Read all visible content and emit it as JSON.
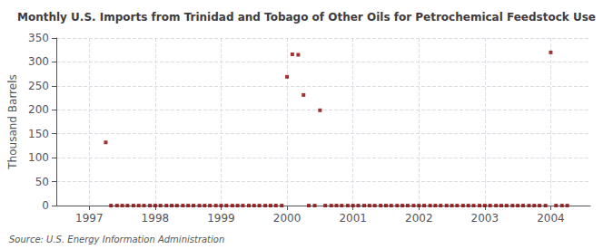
{
  "chart_data": {
    "type": "scatter",
    "title": "Monthly U.S. Imports from Trinidad and Tobago of Other Oils for Petrochemical Feedstock Use",
    "ylabel": "Thousand Barrels",
    "annotations": [
      "Source: U.S. Energy Information Administration"
    ],
    "color": "#8b0000",
    "marker": "square",
    "grid": true,
    "xlim": [
      1996.5,
      2004.6
    ],
    "xticks": [
      1997,
      1998,
      1999,
      2000,
      2001,
      2002,
      2003,
      2004
    ],
    "ylim": [
      0,
      350
    ],
    "yticks": [
      0,
      50,
      100,
      150,
      200,
      250,
      300,
      350
    ],
    "x": [
      1997.25,
      1997.33,
      1997.42,
      1997.5,
      1997.58,
      1997.67,
      1997.75,
      1997.83,
      1997.92,
      1998.0,
      1998.08,
      1998.17,
      1998.25,
      1998.33,
      1998.42,
      1998.5,
      1998.58,
      1998.67,
      1998.75,
      1998.83,
      1998.92,
      1999.0,
      1999.08,
      1999.17,
      1999.25,
      1999.33,
      1999.42,
      1999.5,
      1999.58,
      1999.67,
      1999.75,
      1999.83,
      1999.92,
      2000.0,
      2000.08,
      2000.17,
      2000.25,
      2000.33,
      2000.42,
      2000.5,
      2000.58,
      2000.67,
      2000.75,
      2000.83,
      2000.92,
      2001.0,
      2001.08,
      2001.17,
      2001.25,
      2001.33,
      2001.42,
      2001.5,
      2001.58,
      2001.67,
      2001.75,
      2001.83,
      2001.92,
      2002.0,
      2002.08,
      2002.17,
      2002.25,
      2002.33,
      2002.42,
      2002.5,
      2002.58,
      2002.67,
      2002.75,
      2002.83,
      2002.92,
      2003.0,
      2003.08,
      2003.17,
      2003.25,
      2003.33,
      2003.42,
      2003.5,
      2003.58,
      2003.67,
      2003.75,
      2003.83,
      2003.92,
      2004.0,
      2004.08,
      2004.17,
      2004.25
    ],
    "values": [
      132,
      0,
      0,
      0,
      0,
      0,
      0,
      0,
      0,
      0,
      0,
      0,
      0,
      0,
      0,
      0,
      0,
      0,
      0,
      0,
      0,
      0,
      0,
      0,
      0,
      0,
      0,
      0,
      0,
      0,
      0,
      0,
      0,
      269,
      316,
      315,
      231,
      0,
      0,
      199,
      0,
      0,
      0,
      0,
      0,
      0,
      0,
      0,
      0,
      0,
      0,
      0,
      0,
      0,
      0,
      0,
      0,
      0,
      0,
      0,
      0,
      0,
      0,
      0,
      0,
      0,
      0,
      0,
      0,
      0,
      0,
      0,
      0,
      0,
      0,
      0,
      0,
      0,
      0,
      0,
      0,
      320,
      0,
      0,
      0
    ]
  }
}
